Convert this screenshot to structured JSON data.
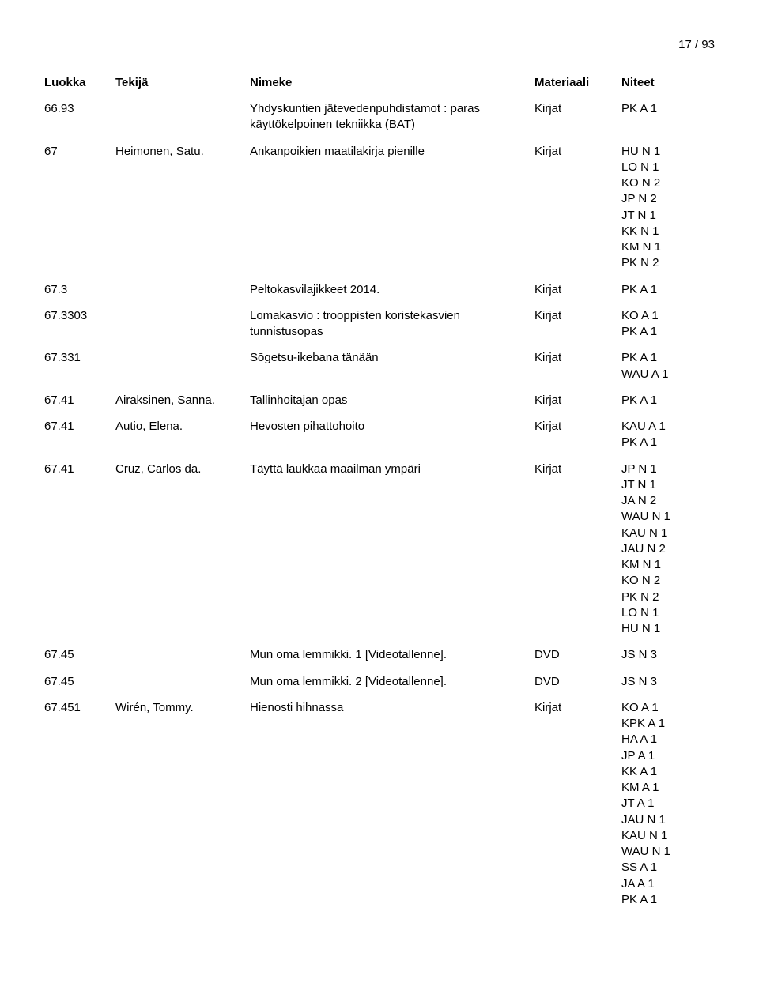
{
  "page_number": "17 / 93",
  "headers": {
    "luokka": "Luokka",
    "tekija": "Tekijä",
    "nimeke": "Nimeke",
    "materiaali": "Materiaali",
    "niteet": "Niteet"
  },
  "rows": [
    {
      "luokka": "66.93",
      "tekija": "",
      "nimeke": "Yhdyskuntien jätevedenpuhdistamot : paras käyttökelpoinen tekniikka (BAT)",
      "materiaali": "Kirjat",
      "niteet": [
        "PK A 1"
      ]
    },
    {
      "luokka": "67",
      "tekija": "Heimonen, Satu.",
      "nimeke": "Ankanpoikien maatilakirja pienille",
      "materiaali": "Kirjat",
      "niteet": [
        "HU N 1",
        "LO N 1",
        "KO N 2",
        "JP N 2",
        "JT N 1",
        "KK N 1",
        "KM N 1",
        "PK N 2"
      ]
    },
    {
      "luokka": "67.3",
      "tekija": "",
      "nimeke": "Peltokasvilajikkeet 2014.",
      "materiaali": "Kirjat",
      "niteet": [
        "PK A 1"
      ]
    },
    {
      "luokka": "67.3303",
      "tekija": "",
      "nimeke": "Lomakasvio : trooppisten koristekasvien tunnistusopas",
      "materiaali": "Kirjat",
      "niteet": [
        "KO A 1",
        "PK A 1"
      ]
    },
    {
      "luokka": "67.331",
      "tekija": "",
      "nimeke": "Sōgetsu-ikebana tänään",
      "materiaali": "Kirjat",
      "niteet": [
        "PK A 1",
        "WAU A 1"
      ]
    },
    {
      "luokka": "67.41",
      "tekija": "Airaksinen, Sanna.",
      "nimeke": "Tallinhoitajan opas",
      "materiaali": "Kirjat",
      "niteet": [
        "PK A 1"
      ]
    },
    {
      "luokka": "67.41",
      "tekija": "Autio, Elena.",
      "nimeke": "Hevosten pihattohoito",
      "materiaali": "Kirjat",
      "niteet": [
        "KAU A 1",
        "PK A 1"
      ]
    },
    {
      "luokka": "67.41",
      "tekija": "Cruz, Carlos da.",
      "nimeke": "Täyttä laukkaa maailman ympäri",
      "materiaali": "Kirjat",
      "niteet": [
        "JP N 1",
        "JT N 1",
        "JA N 2",
        "WAU N 1",
        "KAU N 1",
        "JAU N 2",
        "KM N 1",
        "KO N 2",
        "PK N 2",
        "LO N 1",
        "HU N 1"
      ]
    },
    {
      "luokka": "67.45",
      "tekija": "",
      "nimeke": "Mun oma lemmikki. 1 [Videotallenne].",
      "materiaali": "DVD",
      "niteet": [
        "JS N 3"
      ]
    },
    {
      "luokka": "67.45",
      "tekija": "",
      "nimeke": "Mun oma lemmikki. 2 [Videotallenne].",
      "materiaali": "DVD",
      "niteet": [
        "JS N 3"
      ]
    },
    {
      "luokka": "67.451",
      "tekija": "Wirén, Tommy.",
      "nimeke": "Hienosti hihnassa",
      "materiaali": "Kirjat",
      "niteet": [
        "KO A 1",
        "KPK A 1",
        "HA A 1",
        "JP A 1",
        "KK A 1",
        "KM A 1",
        "JT A 1",
        "JAU N 1",
        "KAU N 1",
        "WAU N 1",
        "SS A 1",
        "JA A 1",
        "PK A 1"
      ]
    }
  ]
}
